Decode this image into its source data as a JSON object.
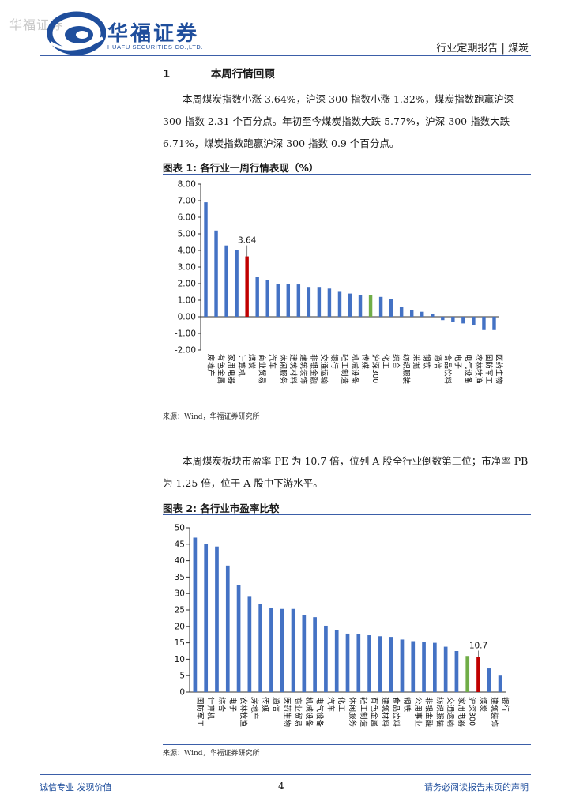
{
  "header": {
    "watermark": "华福证券",
    "logo_cn": "华福证券",
    "logo_en": "HUAFU SECURITIES CO.,LTD.",
    "report_type": "行业定期报告 | 煤炭"
  },
  "section": {
    "number": "1",
    "title": "本周行情回顾"
  },
  "paragraph1": "本周煤炭指数小涨 3.64%，沪深 300 指数小涨 1.32%，煤炭指数跑赢沪深 300 指数 2.31 个百分点。年初至今煤炭指数大跌 5.77%，沪深 300 指数大跌 6.71%，煤炭指数跑赢沪深 300 指数 0.9 个百分点。",
  "figure1": {
    "title": "图表 1:  各行业一周行情表现（%）",
    "source": "来源：Wind，华福证券研究所"
  },
  "paragraph2": "本周煤炭板块市盈率 PE 为 10.7 倍，位列 A 股全行业倒数第三位；市净率 PB 为 1.25 倍，位于 A 股中下游水平。",
  "figure2": {
    "title": "图表 2:  各行业市盈率比较",
    "source": "来源：Wind，华福证券研究所"
  },
  "footer": {
    "left": "诚信专业  发现价值",
    "page": "4",
    "right": "请务必阅读报告末页的声明"
  },
  "colors": {
    "bar": "#4472c4",
    "highlight": "#c00000",
    "benchmark": "#70ad47"
  },
  "chart_data": [
    {
      "type": "bar",
      "title": "各行业一周行情表现（%）",
      "ylim": [
        -2,
        8
      ],
      "yticks": [
        "8.00",
        "7.00",
        "6.00",
        "5.00",
        "4.00",
        "3.00",
        "2.00",
        "1.00",
        "0.00",
        "-1.00",
        "-2.00"
      ],
      "annotation": "3.64",
      "categories": [
        "房地产",
        "有色金属",
        "家用电器",
        "计算机",
        "煤炭",
        "商业贸易",
        "汽车",
        "休闲服务",
        "建筑材料",
        "建筑装饰",
        "非银金融",
        "交通运输",
        "银行",
        "轻工制造",
        "机械设备",
        "传媒",
        "沪深300",
        "化工",
        "综合",
        "纺织服装",
        "采掘",
        "钢铁",
        "通信",
        "食品饮料",
        "电子",
        "电气设备",
        "农林牧渔",
        "国防军工",
        "医药生物"
      ],
      "values": [
        6.9,
        5.2,
        4.3,
        4.0,
        3.64,
        2.4,
        2.2,
        2.0,
        2.0,
        1.95,
        1.8,
        1.8,
        1.7,
        1.55,
        1.4,
        1.32,
        1.3,
        1.2,
        1.05,
        0.6,
        0.4,
        0.3,
        0.15,
        -0.2,
        -0.3,
        -0.4,
        -0.5,
        -0.8,
        -0.8
      ],
      "highlight": "煤炭",
      "benchmark": "沪深300",
      "grid": false
    },
    {
      "type": "bar",
      "title": "各行业市盈率比较",
      "ylim": [
        0,
        50
      ],
      "yticks": [
        "50",
        "45",
        "40",
        "35",
        "30",
        "25",
        "20",
        "15",
        "10",
        "5",
        "0"
      ],
      "annotation": "10.7",
      "categories": [
        "国防军工",
        "计算机",
        "综合",
        "电子",
        "农林牧渔",
        "房地产",
        "传媒",
        "通信",
        "医药生物",
        "商业贸易",
        "机械设备",
        "电气设备",
        "汽车",
        "化工",
        "休闲服务",
        "轻工制造",
        "有色金属",
        "建筑材料",
        "食品饮料",
        "钢铁",
        "公用事业",
        "非银金融",
        "纺织服装",
        "交通运输",
        "家用电器",
        "沪深300",
        "煤炭",
        "建筑装饰",
        "银行"
      ],
      "values": [
        47.0,
        45.0,
        44.3,
        38.5,
        32.5,
        29.0,
        26.8,
        25.5,
        25.3,
        25.3,
        23.5,
        22.8,
        20.2,
        18.8,
        17.8,
        17.6,
        17.3,
        17.0,
        16.8,
        16.0,
        15.5,
        15.2,
        15.0,
        13.8,
        12.5,
        11.0,
        10.7,
        7.2,
        5.0
      ],
      "highlight": "煤炭",
      "benchmark": "沪深300",
      "grid": false
    }
  ]
}
